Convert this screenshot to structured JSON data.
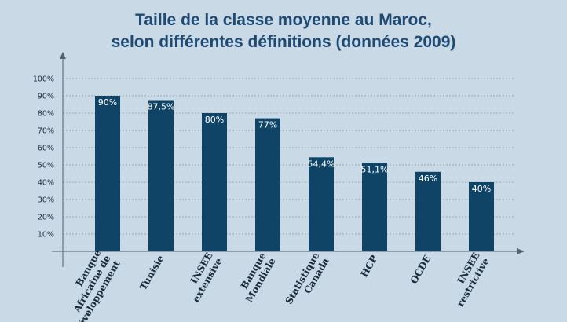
{
  "chart_data": {
    "type": "bar",
    "title_lines": [
      "Taille de la classe moyenne au Maroc,",
      "selon différentes définitions (données 2009)"
    ],
    "categories": [
      [
        "Banque",
        "Africaine de",
        "Développement"
      ],
      [
        "Tunisie"
      ],
      [
        "INSEE",
        "extensive"
      ],
      [
        "Banque",
        "Mondiale"
      ],
      [
        "Statistique",
        "Canada"
      ],
      [
        "HCP"
      ],
      [
        "OCDE"
      ],
      [
        "INSEE",
        "restrictive"
      ]
    ],
    "values": [
      90,
      87.5,
      80,
      77,
      54.4,
      51.1,
      46,
      40
    ],
    "value_labels": [
      "90%",
      "87,5%",
      "80%",
      "77%",
      "54,4%",
      "51,1%",
      "46%",
      "40%"
    ],
    "y_ticks": [
      "10%",
      "20%",
      "30%",
      "40%",
      "50%",
      "60%",
      "70%",
      "80%",
      "90%",
      "100%"
    ],
    "ylim": [
      0,
      100
    ],
    "grid": true,
    "colors": {
      "bar": "#0f4467",
      "background": "#c9d9e6",
      "title": "#1e4a73",
      "grid": "#8a99a8"
    }
  }
}
